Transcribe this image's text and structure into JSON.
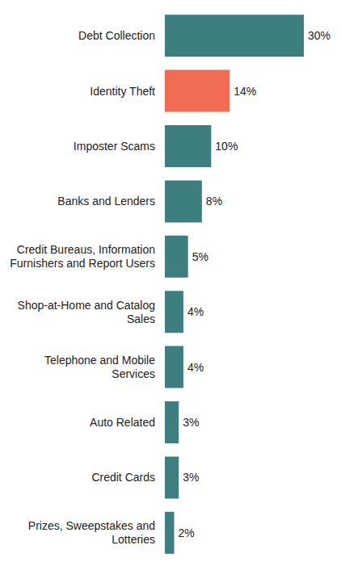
{
  "chart_data": {
    "type": "bar",
    "orientation": "horizontal",
    "categories": [
      "Debt Collection",
      "Identity Theft",
      "Imposter Scams",
      "Banks and Lenders",
      "Credit Bureaus, Information Furnishers and Report Users",
      "Shop-at-Home and Catalog Sales",
      "Telephone and Mobile Services",
      "Auto Related",
      "Credit Cards",
      "Prizes, Sweepstakes and Lotteries"
    ],
    "values": [
      30,
      14,
      10,
      8,
      5,
      4,
      4,
      3,
      3,
      2
    ],
    "value_labels": [
      "30%",
      "14%",
      "10%",
      "8%",
      "5%",
      "4%",
      "4%",
      "3%",
      "3%",
      "2%"
    ],
    "colors": [
      "#3d7f7e",
      "#f26c53",
      "#3d7f7e",
      "#3d7f7e",
      "#3d7f7e",
      "#3d7f7e",
      "#3d7f7e",
      "#3d7f7e",
      "#3d7f7e",
      "#3d7f7e"
    ],
    "data_labels": true,
    "tick_labels": "y",
    "grid": false
  }
}
